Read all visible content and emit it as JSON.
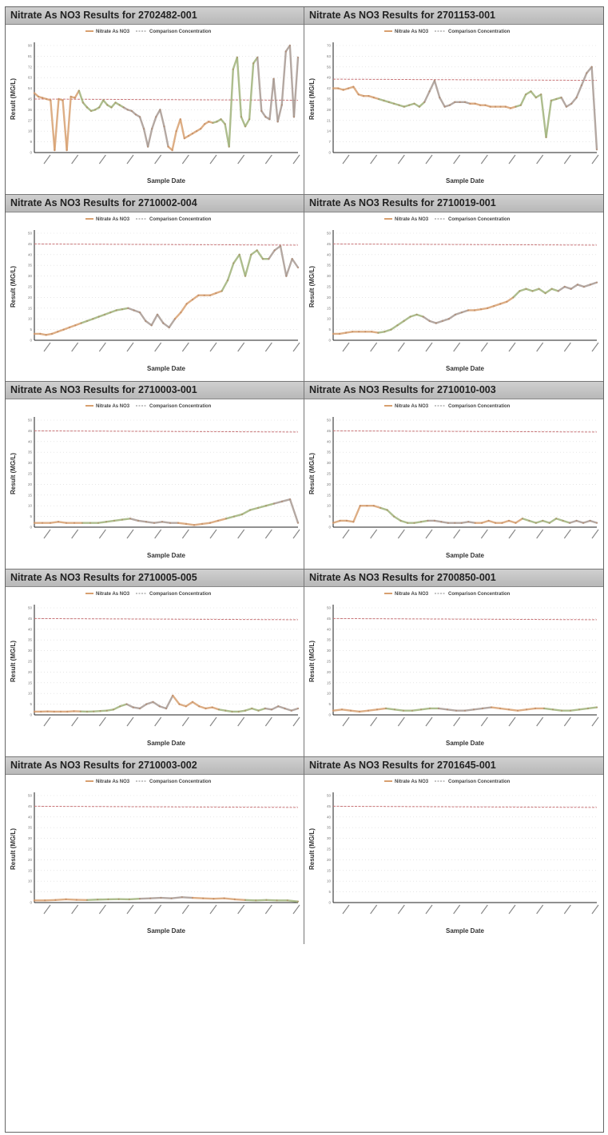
{
  "legend": {
    "series": "Nitrate As NO3",
    "comparison": "Comparison Concentration"
  },
  "colors": {
    "series": "#d8a070",
    "series_alt": "#9fb27a",
    "series_dark": "#a89a92",
    "comparison": "#c9777a"
  },
  "chart_data": [
    {
      "type": "line",
      "title": "Nitrate As NO3 Results for 2702482-001",
      "xlabel": "Sample Date",
      "ylabel": "Result (MG/L)",
      "ylim": [
        0,
        90
      ],
      "comparison": 45,
      "values": [
        50,
        47,
        46,
        45,
        44,
        2,
        45,
        44,
        2,
        47,
        46,
        52,
        42,
        38,
        35,
        36,
        38,
        44,
        40,
        38,
        42,
        40,
        38,
        36,
        35,
        32,
        30,
        20,
        5,
        20,
        30,
        36,
        22,
        5,
        2,
        18,
        28,
        12,
        14,
        16,
        18,
        20,
        24,
        26,
        25,
        26,
        28,
        24,
        5,
        70,
        80,
        30,
        22,
        28,
        75,
        80,
        35,
        30,
        28,
        62,
        26,
        40,
        85,
        90,
        30,
        80
      ]
    },
    {
      "type": "line",
      "title": "Nitrate As NO3 Results for 2701153-001",
      "xlabel": "Sample Date",
      "ylabel": "Result (MG/L)",
      "ylim": [
        0,
        70
      ],
      "comparison": 48,
      "values": [
        42,
        42,
        41,
        42,
        43,
        38,
        37,
        37,
        36,
        35,
        34,
        33,
        32,
        31,
        30,
        31,
        32,
        30,
        33,
        40,
        47,
        36,
        30,
        31,
        33,
        33,
        33,
        32,
        32,
        31,
        31,
        30,
        30,
        30,
        30,
        29,
        30,
        31,
        38,
        40,
        36,
        38,
        10,
        34,
        35,
        36,
        30,
        32,
        36,
        44,
        52,
        56,
        2
      ]
    },
    {
      "type": "line",
      "title": "Nitrate As NO3 Results for 2710002-004",
      "xlabel": "Sample Date",
      "ylabel": "Result (MG/L)",
      "ylim": [
        0,
        50
      ],
      "comparison": 45,
      "values": [
        3,
        3,
        2.5,
        3,
        4,
        5,
        6,
        7,
        8,
        9,
        10,
        11,
        12,
        13,
        14,
        14.5,
        15,
        14,
        13,
        9,
        7,
        12,
        8,
        6,
        10,
        13,
        17,
        19,
        21,
        21,
        21,
        22,
        23,
        28,
        36,
        40,
        30,
        40,
        42,
        38,
        38,
        42,
        44,
        30,
        38,
        34
      ]
    },
    {
      "type": "line",
      "title": "Nitrate As NO3 Results for 2710019-001",
      "xlabel": "Sample Date",
      "ylabel": "Result (MG/L)",
      "ylim": [
        0,
        50
      ],
      "comparison": 45,
      "values": [
        3,
        3,
        3.5,
        4,
        4,
        4,
        4,
        3.5,
        4,
        5,
        7,
        9,
        11,
        12,
        11,
        9,
        8,
        9,
        10,
        12,
        13,
        14,
        14,
        14.5,
        15,
        16,
        17,
        18,
        20,
        23,
        24,
        23,
        24,
        22,
        24,
        23,
        25,
        24,
        26,
        25,
        26,
        27
      ]
    },
    {
      "type": "line",
      "title": "Nitrate As NO3 Results for 2710003-001",
      "xlabel": "Sample Date",
      "ylabel": "Result (MG/L)",
      "ylim": [
        0,
        50
      ],
      "comparison": 45,
      "values": [
        2,
        2,
        2,
        2.5,
        2,
        2,
        2,
        2,
        2,
        2.5,
        3,
        3.5,
        4,
        3,
        2.5,
        2,
        2.5,
        2,
        2,
        1.5,
        1,
        1.5,
        2,
        3,
        4,
        5,
        6,
        8,
        9,
        10,
        11,
        12,
        13,
        2
      ]
    },
    {
      "type": "line",
      "title": "Nitrate As NO3 Results for 2710010-003",
      "xlabel": "Sample Date",
      "ylabel": "Result (MG/L)",
      "ylim": [
        0,
        50
      ],
      "comparison": 45,
      "values": [
        2,
        3,
        3,
        2.5,
        10,
        10,
        10,
        9,
        8,
        5,
        3,
        2,
        2,
        2.5,
        3,
        3,
        2.5,
        2,
        2,
        2,
        2.5,
        2,
        2,
        3,
        2,
        2,
        3,
        2,
        4,
        3,
        2,
        3,
        2,
        4,
        3,
        2,
        3,
        2,
        3,
        2
      ]
    },
    {
      "type": "line",
      "title": "Nitrate As NO3 Results for 2710005-005",
      "xlabel": "Sample Date",
      "ylabel": "Result (MG/L)",
      "ylim": [
        0,
        50
      ],
      "comparison": 45,
      "values": [
        1.5,
        1.5,
        1.6,
        1.5,
        1.5,
        1.5,
        1.7,
        1.6,
        1.5,
        1.6,
        1.8,
        2,
        2.5,
        4,
        5,
        3.5,
        3,
        5,
        6,
        4,
        3,
        9,
        5,
        4,
        6,
        4,
        3,
        3.5,
        2.5,
        2,
        1.5,
        1.5,
        2,
        3,
        2,
        3,
        2.5,
        4,
        3,
        2,
        3
      ]
    },
    {
      "type": "line",
      "title": "Nitrate As NO3 Results for 2700850-001",
      "xlabel": "Sample Date",
      "ylabel": "Result (MG/L)",
      "ylim": [
        0,
        50
      ],
      "comparison": 45,
      "values": [
        2,
        2.5,
        2,
        1.5,
        2,
        2.5,
        3,
        2.5,
        2,
        2,
        2.5,
        3,
        3,
        2.5,
        2,
        2,
        2.5,
        3,
        3.5,
        3,
        2.5,
        2,
        2.5,
        3,
        3,
        2.5,
        2,
        2,
        2.5,
        3,
        3.5
      ]
    },
    {
      "type": "line",
      "title": "Nitrate As NO3 Results for 2710003-002",
      "xlabel": "Sample Date",
      "ylabel": "Result (MG/L)",
      "ylim": [
        0,
        50
      ],
      "comparison": 45,
      "values": [
        1,
        1,
        1.2,
        1.5,
        1.3,
        1.2,
        1.4,
        1.5,
        1.6,
        1.5,
        1.8,
        2,
        2.2,
        2,
        2.5,
        2.2,
        2,
        1.8,
        2,
        1.5,
        1.2,
        1,
        1.2,
        1,
        1,
        0.5
      ]
    },
    {
      "type": "line",
      "title": "Nitrate As NO3 Results for 2701645-001",
      "xlabel": "Sample Date",
      "ylabel": "Result (MG/L)",
      "ylim": [
        0,
        50
      ],
      "comparison": 45,
      "values": []
    }
  ]
}
